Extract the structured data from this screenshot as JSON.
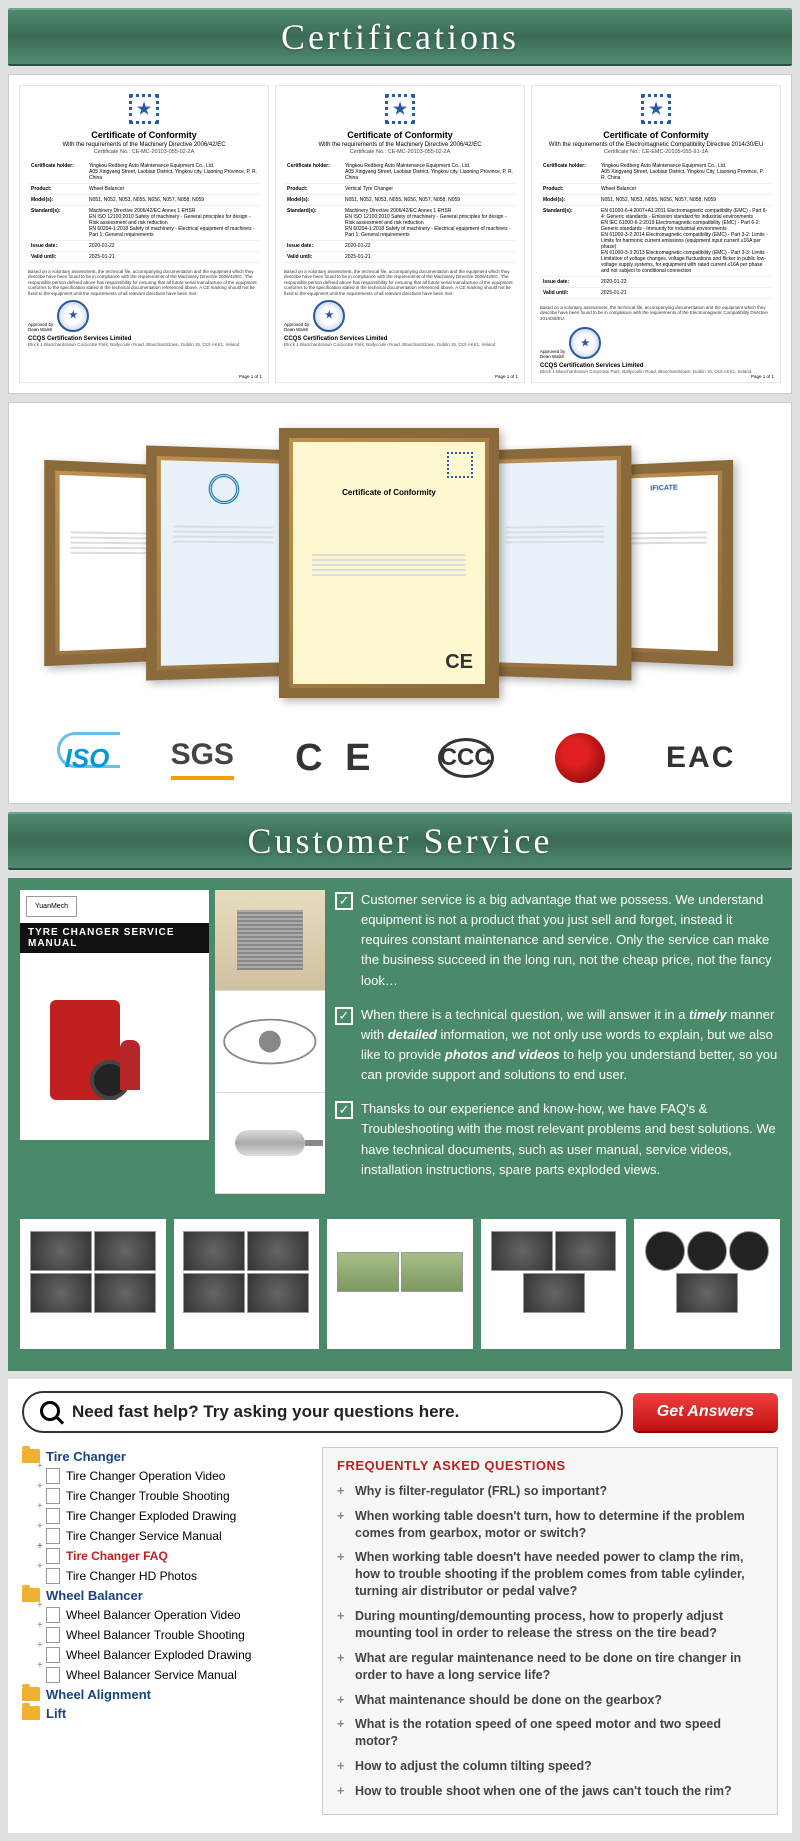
{
  "certifications": {
    "title": "Certifications",
    "docs": [
      {
        "title": "Certificate of Conformity",
        "subtitle": "With the requirements of the Machinery Directive 2006/42/EC",
        "certno": "Certificate No.: CE-MC-20103-055-02-2A",
        "fields": [
          {
            "k": "Certificate holder:",
            "v": "Yingkou Redberg Auto Maintenance Equipment Co., Ltd.\nA05 Xingyang Street, Laobian District, Yingkou city, Liaoning Province, P. R. China"
          },
          {
            "k": "Product:",
            "v": "Wheel Balancer"
          },
          {
            "k": "Model(s):",
            "v": "N051, N052, N053, N055, N056, N057, N058, N059"
          },
          {
            "k": "Standard(s):",
            "v": "Machinery Directive 2006/42/EC Annex 1 EHSR\nEN ISO 12100:2010 Safety of machinery - General principles for design - Risk assessment and risk reduction\nEN 60204-1:2018 Safety of machinery - Electrical equipment of machines - Part 1: General requirements"
          },
          {
            "k": "Issue date:",
            "v": "2020-01-22"
          },
          {
            "k": "Valid until:",
            "v": "2025-01-21"
          }
        ],
        "footer": "Based on a voluntary assessment, the technical file, accompanying documentation and the equipment which they describe have been found to be in compliance with the requirements of the Machinery Directive 2006/42/EC.\nThe responsible person defined above has responsibility for ensuring that all future serial manufacture of the equipment conforms to the specification stated in the technical documentation referenced above.\nA CE marking should not be fixed to the equipment until the requirements of all relevant directives have been met.",
        "company": "CCQS Certification Services Limited",
        "addr": "Block 1 Blanchardstown Corporate Park, Ballycoolin Road, Blanchardstown, Dublin 15, D15 AKK1, Ireland",
        "page": "Page 1 of 1"
      },
      {
        "title": "Certificate of Conformity",
        "subtitle": "With the requirements of the Machinery Directive 2006/42/EC",
        "certno": "Certificate No.: CE-MC-20103-055-02-2A",
        "fields": [
          {
            "k": "Certificate holder:",
            "v": "Yingkou Redberg Auto Maintenance Equipment Co., Ltd.\nA05 Xingyang Street, Laobian District, Yingkou city, Liaoning Province, P. R. China"
          },
          {
            "k": "Product:",
            "v": "Vertical Tyre Changer"
          },
          {
            "k": "Model(s):",
            "v": "N051, N052, N053, N055, N056, N057, N058, N059"
          },
          {
            "k": "Standard(s):",
            "v": "Machinery Directive 2006/42/EC Annex 1 EHSR\nEN ISO 12100:2010 Safety of machinery - General principles for design - Risk assessment and risk reduction\nEN 60204-1:2018 Safety of machinery - Electrical equipment of machines - Part 1: General requirements"
          },
          {
            "k": "Issue date:",
            "v": "2020-01-22"
          },
          {
            "k": "Valid until:",
            "v": "2025-01-21"
          }
        ],
        "footer": "Based on a voluntary assessment, the technical file, accompanying documentation and the equipment which they describe have been found to be in compliance with the requirements of the Machinery Directive 2006/42/EC.\nThe responsible person defined above has responsibility for ensuring that all future serial manufacture of the equipment conforms to the specification stated in the technical documentation referenced above.\nA CE marking should not be fixed to the equipment until the requirements of all relevant directives have been met.",
        "company": "CCQS Certification Services Limited",
        "addr": "Block 1 Blanchardstown Corporate Park, Ballycoolin Road, Blanchardstown, Dublin 15, D15 AKK1, Ireland",
        "page": "Page 1 of 1"
      },
      {
        "title": "Certificate of Conformity",
        "subtitle": "With the requirements of the Electromagnetic Compatibility Directive 2014/30/EU",
        "certno": "Certificate No.: CE-EMC-20105-055-91-3A",
        "fields": [
          {
            "k": "Certificate holder:",
            "v": "Yingkou Redberg Auto Maintenance Equipment Co., Ltd.\nA05 Xingyang Street, Laobian District, Yingkou City, Liaoning Province, P. R. China"
          },
          {
            "k": "Product:",
            "v": "Wheel Balancer"
          },
          {
            "k": "Model(s):",
            "v": "N051, N052, N053, N055, N056, N057, N058, N059"
          },
          {
            "k": "Standard(s):",
            "v": "EN 61000-6-4:2007+A1:2011 Electromagnetic compatibility (EMC) - Part 6-4: Generic standards - Emission standard for industrial environments\nEN IEC 61000-6-2:2019 Electromagnetic compatibility (EMC) - Part 6-2: Generic standards - Immunity for industrial environments\nEN 61000-3-2:2014 Electromagnetic compatibility (EMC) - Part 3-2: Limits - Limits for harmonic current emissions (equipment input current ≤16A per phase)\nEN 61000-3-3:2013 Electromagnetic compatibility (EMC) - Part 3-3: Limits - Limitation of voltage changes, voltage fluctuations and flicker in public low-voltage supply systems, for equipment with rated current ≤16A per phase and not subject to conditional connection"
          },
          {
            "k": "Issue date:",
            "v": "2020-01-22"
          },
          {
            "k": "Valid until:",
            "v": "2025-01-21"
          }
        ],
        "footer": "Based on a voluntary assessment, the technical file, accompanying documentation and the equipment which they describe have been found to be in compliance with the requirements of the Electromagnetic Compatibility Directive 2014/30/EU.",
        "company": "CCQS Certification Services Limited",
        "addr": "Block 1 Blanchardstown Corporate Park, Ballycoolin Road, Blanchardstown, Dublin 15, D15 AKK1, Ireland",
        "page": "Page 1 of 1"
      }
    ],
    "frame_center": {
      "title": "Certificate of Conformity",
      "ce": "CE"
    },
    "logos": {
      "iso": "ISO",
      "sgs": "SGS",
      "ce": "C E",
      "ccc": "CCC",
      "eac": "EAC"
    }
  },
  "customer_service": {
    "title": "Customer Service",
    "manual_label": "TYRE CHANGER SERVICE MANUAL",
    "bullets": [
      "Customer service is a big advantage that we possess. We understand equipment is not a product that you just sell and forget, instead it requires constant maintenance and service. Only the service can make the business succeed in the long run, not the cheap price, not the fancy look…",
      "When there is a technical question, we will answer it in a <em>timely</em> manner with <em>detailed</em> information, we not only use words to explain, but we also like to provide <strong>photos and videos</strong> to help you understand better, so you can provide support and solutions to end user.",
      "Thansks to our experience and know-how, we have FAQ's & Troubleshooting with the most relevant problems and best solutions. We have technical documents, such as user manual, service videos, installation instructions, spare parts exploded views."
    ]
  },
  "help": {
    "placeholder": "Need fast help? Try asking your questions here.",
    "button": "Get Answers",
    "tree": [
      {
        "label": "Tire Changer",
        "children": [
          "Tire Changer Operation Video",
          "Tire Changer Trouble Shooting",
          "Tire Changer Exploded Drawing",
          "Tire Changer Service Manual",
          "Tire Changer FAQ",
          "Tire Changer HD Photos"
        ]
      },
      {
        "label": "Wheel Balancer",
        "children": [
          "Wheel Balancer Operation Video",
          "Wheel Balancer Trouble Shooting",
          "Wheel Balancer Exploded Drawing",
          "Wheel Balancer Service Manual"
        ]
      },
      {
        "label": "Wheel Alignment",
        "children": []
      },
      {
        "label": "Lift",
        "children": []
      }
    ],
    "faq_title": "FREQUENTLY ASKED QUESTIONS",
    "faqs": [
      "Why is filter-regulator (FRL) so important?",
      "When working table doesn't turn, how to determine if the problem comes from gearbox, motor or switch?",
      "When working table doesn't have needed power to clamp the rim, how to trouble shooting if the problem comes from table cylinder, turning air distributor or pedal valve?",
      "During mounting/demounting process, how to properly adjust mounting tool in order to release the stress on the tire bead?",
      "What are regular maintenance need to be done on tire changer in order to have a long service life?",
      "What maintenance should be done on the gearbox?",
      "What is the rotation speed of one speed motor and two speed motor?",
      "How to adjust the column tilting speed?",
      "How to trouble shoot when one of the jaws can't touch the rim?"
    ]
  },
  "colors": {
    "green_header": "#4a8a6a",
    "panel_green": "#4a8a6a",
    "red_button": "#d01818",
    "blue_link": "#1a4480",
    "faq_red": "#c02020",
    "folder": "#f0b030"
  }
}
